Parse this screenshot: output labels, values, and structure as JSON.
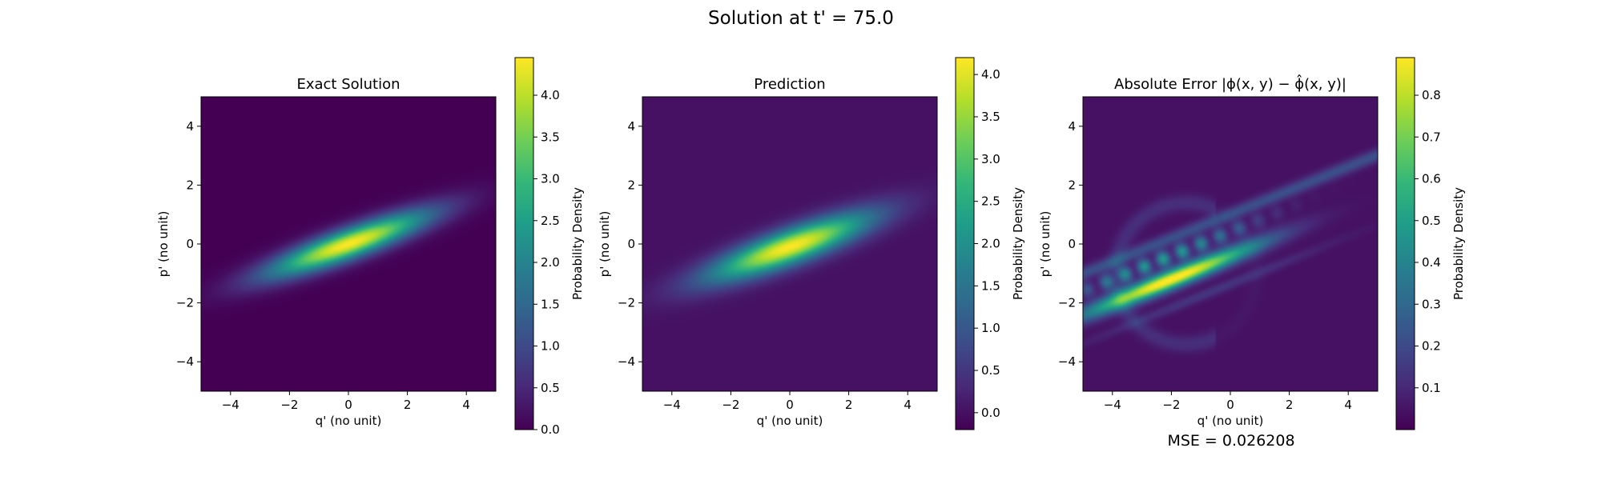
{
  "suptitle": "Solution at t' = 75.0",
  "footer": {
    "mse": "MSE = 0.026208"
  },
  "colors": {
    "viridis": [
      "#440154",
      "#482878",
      "#3e4a89",
      "#31688e",
      "#26828e",
      "#1f9e89",
      "#35b779",
      "#6ece58",
      "#b5de2b",
      "#fde725"
    ]
  },
  "chart_data": [
    {
      "type": "heatmap",
      "title": "Exact Solution",
      "xlabel": "q' (no unit)",
      "ylabel": "p' (no unit)",
      "xlim": [
        -5,
        5
      ],
      "ylim": [
        -5,
        5
      ],
      "xticks": [
        -4,
        -2,
        0,
        2,
        4
      ],
      "yticks": [
        -4,
        -2,
        0,
        2,
        4
      ],
      "xtick_labels": [
        "−4",
        "−2",
        "0",
        "2",
        "4"
      ],
      "ytick_labels": [
        "−4",
        "−2",
        "0",
        "2",
        "4"
      ],
      "colorbar": {
        "label": "Probability Density",
        "range": [
          0.0,
          4.45
        ],
        "ticks": [
          0.0,
          0.5,
          1.0,
          1.5,
          2.0,
          2.5,
          3.0,
          3.5,
          4.0
        ],
        "tick_labels": [
          "0.0",
          "0.5",
          "1.0",
          "1.5",
          "2.0",
          "2.5",
          "3.0",
          "3.5",
          "4.0"
        ]
      },
      "field": {
        "kind": "tilted-gaussian",
        "center": [
          0,
          0
        ],
        "peak": 4.45,
        "major_axis_angle_deg": 20,
        "sigma_major": 2.0,
        "sigma_minor": 0.35
      }
    },
    {
      "type": "heatmap",
      "title": "Prediction",
      "xlabel": "q' (no unit)",
      "ylabel": "p' (no unit)",
      "xlim": [
        -5,
        5
      ],
      "ylim": [
        -5,
        5
      ],
      "xticks": [
        -4,
        -2,
        0,
        2,
        4
      ],
      "yticks": [
        -4,
        -2,
        0,
        2,
        4
      ],
      "xtick_labels": [
        "−4",
        "−2",
        "0",
        "2",
        "4"
      ],
      "ytick_labels": [
        "−4",
        "−2",
        "0",
        "2",
        "4"
      ],
      "colorbar": {
        "label": "Probability Density",
        "range": [
          -0.2,
          4.2
        ],
        "ticks": [
          0.0,
          0.5,
          1.0,
          1.5,
          2.0,
          2.5,
          3.0,
          3.5,
          4.0
        ],
        "tick_labels": [
          "0.0",
          "0.5",
          "1.0",
          "1.5",
          "2.0",
          "2.5",
          "3.0",
          "3.5",
          "4.0"
        ]
      },
      "field": {
        "kind": "tilted-gaussian",
        "center": [
          0,
          -0.1
        ],
        "peak": 4.2,
        "major_axis_angle_deg": 20,
        "sigma_major": 2.0,
        "sigma_minor": 0.4
      }
    },
    {
      "type": "heatmap",
      "title": "Absolute Error |ϕ(x, y) − ϕ̂(x, y)|",
      "xlabel": "q' (no unit)",
      "ylabel": "p' (no unit)",
      "xlim": [
        -5,
        5
      ],
      "ylim": [
        -5,
        5
      ],
      "xticks": [
        -4,
        -2,
        0,
        2,
        4
      ],
      "yticks": [
        -4,
        -2,
        0,
        2,
        4
      ],
      "xtick_labels": [
        "−4",
        "−2",
        "0",
        "2",
        "4"
      ],
      "ytick_labels": [
        "−4",
        "−2",
        "0",
        "2",
        "4"
      ],
      "colorbar": {
        "label": "Probability Density",
        "range": [
          0.0,
          0.89
        ],
        "ticks": [
          0.1,
          0.2,
          0.3,
          0.4,
          0.5,
          0.6,
          0.7,
          0.8
        ],
        "tick_labels": [
          "0.1",
          "0.2",
          "0.3",
          "0.4",
          "0.5",
          "0.6",
          "0.7",
          "0.8"
        ]
      },
      "field": {
        "kind": "error-bands",
        "peak": 0.89,
        "peak_at": [
          -2,
          -1.2
        ],
        "major_axis_angle_deg": 22
      }
    }
  ]
}
